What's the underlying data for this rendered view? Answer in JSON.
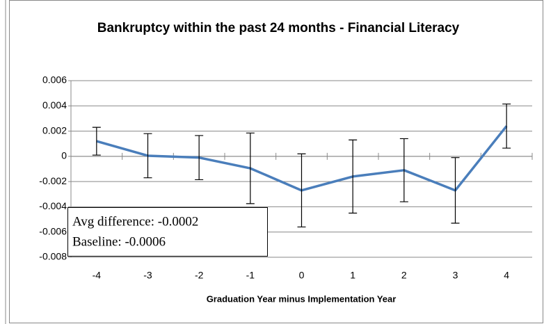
{
  "chart_data": {
    "type": "line",
    "title": "Bankruptcy within the past 24 months - Financial Literacy",
    "x_label": "Graduation Year minus Implementation Year",
    "categories": [
      "-4",
      "-3",
      "-2",
      "-1",
      "0",
      "1",
      "2",
      "3",
      "4"
    ],
    "series": [
      {
        "name": "Bankruptcy",
        "color": "#4a7ebb",
        "values": [
          0.0012,
          5e-05,
          -0.0001,
          -0.00095,
          -0.0027,
          -0.0016,
          -0.0011,
          -0.0027,
          0.0024
        ],
        "errors": [
          0.0011,
          0.00175,
          0.00175,
          0.0028,
          0.0029,
          0.0029,
          0.0025,
          0.0026,
          0.00175
        ]
      }
    ],
    "ylim": [
      -0.008,
      0.006
    ],
    "yticks": [
      -0.008,
      -0.006,
      -0.004,
      -0.002,
      0,
      0.002,
      0.004,
      0.006
    ],
    "grid": true,
    "annotations": [
      "Avg difference:  -0.0002",
      "Baseline:  -0.0006"
    ]
  }
}
